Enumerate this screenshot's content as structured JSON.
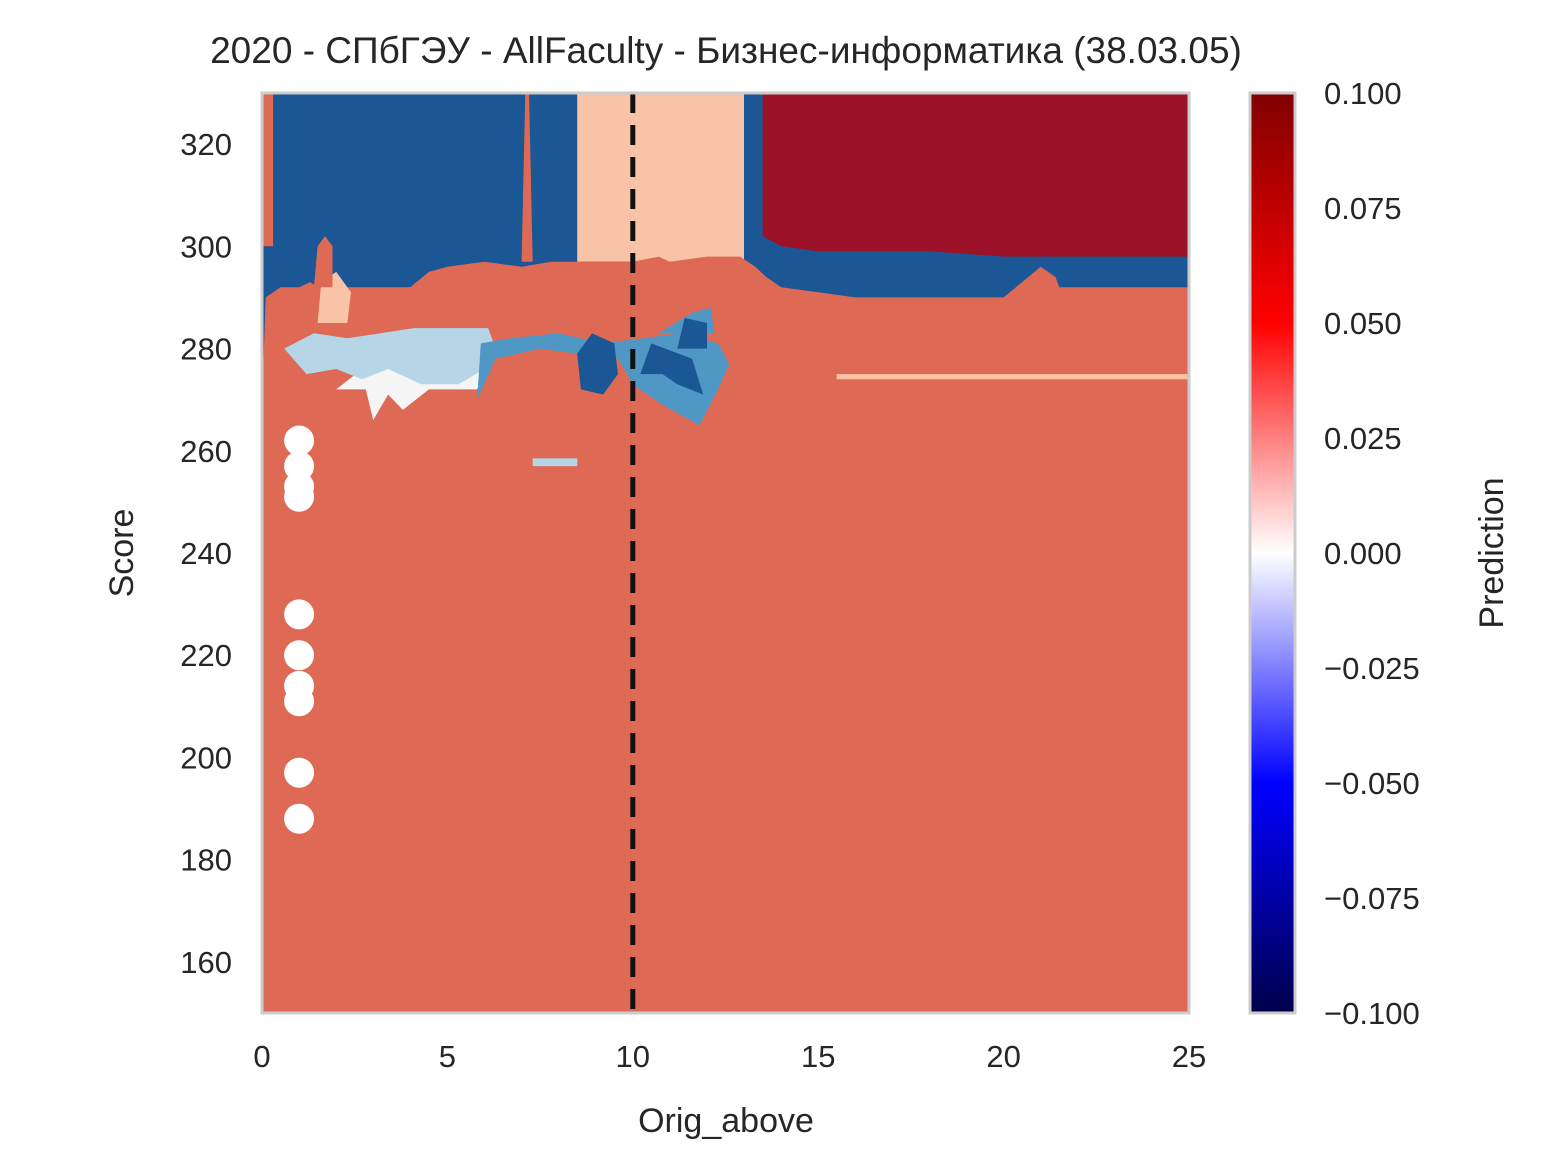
{
  "chart_data": {
    "type": "heatmap",
    "title": "2020 - СПбГЭУ - AllFaculty - Бизнес-информатика (38.03.05)",
    "xlabel": "Orig_above",
    "ylabel": "Score",
    "xlim": [
      0,
      25
    ],
    "ylim": [
      150,
      330
    ],
    "x_ticks": [
      0,
      5,
      10,
      15,
      20,
      25
    ],
    "y_ticks": [
      160,
      180,
      200,
      220,
      240,
      260,
      280,
      300,
      320
    ],
    "grid": false,
    "colormap": "seismic",
    "colorbar": {
      "label": "Prediction",
      "range": [
        -0.1,
        0.1
      ],
      "ticks": [
        "0.100",
        "0.075",
        "0.050",
        "0.025",
        "0.000",
        "−0.025",
        "−0.050",
        "−0.075",
        "−0.100"
      ]
    },
    "contour_levels": [
      {
        "value": -0.1,
        "color": "#1b5795"
      },
      {
        "value": -0.05,
        "color": "#4f98c5"
      },
      {
        "value": -0.025,
        "color": "#b6d6e8"
      },
      {
        "value": 0.0,
        "color": "#f5f5f5"
      },
      {
        "value": 0.025,
        "color": "#f9c3a8"
      },
      {
        "value": 0.05,
        "color": "#de6a55"
      },
      {
        "value": 0.1,
        "color": "#9c1229"
      }
    ],
    "reference_line": {
      "x": 10,
      "style": "dashed",
      "color": "#111111"
    },
    "points": [
      {
        "x": 1,
        "y": 262
      },
      {
        "x": 1,
        "y": 257
      },
      {
        "x": 1,
        "y": 253
      },
      {
        "x": 1,
        "y": 251
      },
      {
        "x": 1,
        "y": 228
      },
      {
        "x": 1,
        "y": 220
      },
      {
        "x": 1,
        "y": 214
      },
      {
        "x": 1,
        "y": 211
      },
      {
        "x": 1,
        "y": 197
      },
      {
        "x": 1,
        "y": 188
      }
    ],
    "points_color": "#ffffff"
  }
}
